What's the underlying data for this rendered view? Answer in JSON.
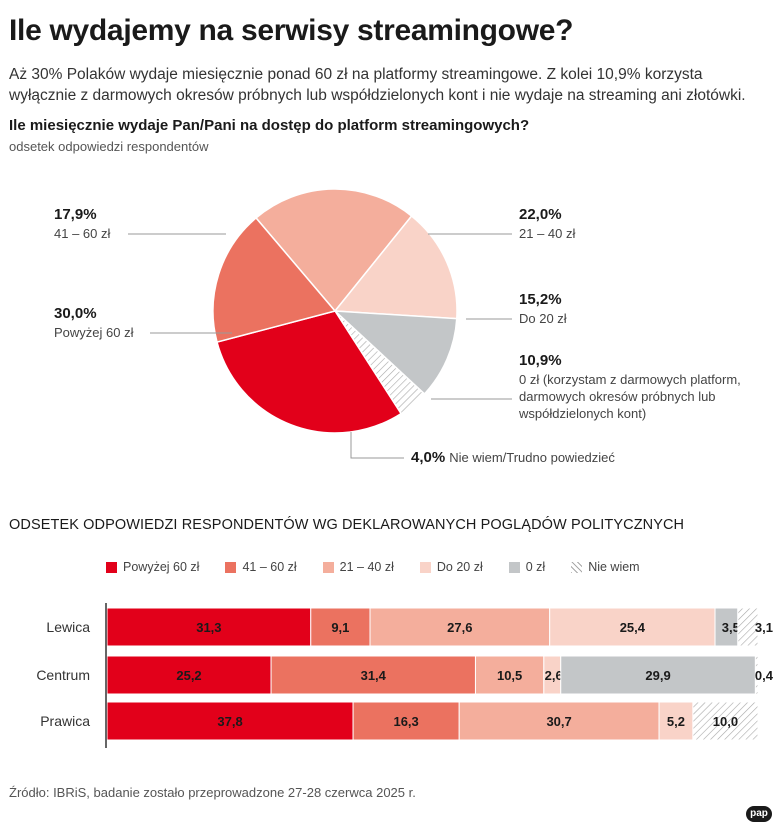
{
  "header": {
    "title": "Ile wydajemy na serwisy streamingowe?",
    "intro": "Aż 30% Polaków wydaje miesięcznie ponad 60 zł na platformy streamingowe. Z kolei 10,9% korzysta wyłącznie z darmowych okresów próbnych lub współdzielonych kont i nie wydaje na streaming ani złotówki.",
    "question": "Ile miesięcznie wydaje Pan/Pani na dostęp do platform streamingowych?",
    "note": "odsetek odpowiedzi respondentów"
  },
  "pie_labels": {
    "above60": {
      "pct": "30,0%",
      "cat": "Powyżej 60 zł"
    },
    "r41_60": {
      "pct": "17,9%",
      "cat": "41 – 60 zł"
    },
    "r21_40": {
      "pct": "22,0%",
      "cat": "21 – 40 zł"
    },
    "upto20": {
      "pct": "15,2%",
      "cat": "Do 20 zł"
    },
    "zero": {
      "pct": "10,9%",
      "cat": "0 zł (korzystam z darmowych platform, darmowych okresów próbnych lub współdzielonych kont)"
    },
    "dontknow": {
      "pct": "4,0%",
      "cat": "Nie wiem/Trudno powiedzieć"
    }
  },
  "bars_section": {
    "title": "ODSETEK ODPOWIEDZI RESPONDENTÓW WG DEKLAROWANYCH POGLĄDÓW POLITYCZNYCH"
  },
  "legend": [
    {
      "label": "Powyżej 60 zł",
      "color": "#e2001a"
    },
    {
      "label": "41 – 60 zł",
      "color": "#eb7260"
    },
    {
      "label": "21 – 40 zł",
      "color": "#f4ae9c"
    },
    {
      "label": "Do 20 zł",
      "color": "#f9d3c8"
    },
    {
      "label": "0 zł",
      "color": "#c3c6c8"
    },
    {
      "label": "Nie wiem",
      "color": "hatch"
    }
  ],
  "footer": {
    "source": "Źródło: IBRiS, badanie zostało przeprowadzone 27-28 czerwca 2025 r.",
    "logo": "pap"
  },
  "chart_data": [
    {
      "type": "pie",
      "title": "Ile miesięcznie wydaje Pan/Pani na dostęp do platform streamingowych?",
      "categories": [
        "Powyżej 60 zł",
        "41 – 60 zł",
        "21 – 40 zł",
        "Do 20 zł",
        "0 zł",
        "Nie wiem/Trudno powiedzieć"
      ],
      "values": [
        30.0,
        17.9,
        22.0,
        15.2,
        10.9,
        4.0
      ],
      "colors": [
        "#e2001a",
        "#eb7260",
        "#f4ae9c",
        "#f9d3c8",
        "#c3c6c8",
        "hatch"
      ]
    },
    {
      "type": "bar",
      "orientation": "horizontal",
      "stacked": true,
      "title": "ODSETEK ODPOWIEDZI RESPONDENTÓW WG DEKLAROWANYCH POGLĄDÓW POLITYCZNYCH",
      "categories": [
        "Lewica",
        "Centrum",
        "Prawica"
      ],
      "series": [
        {
          "name": "Powyżej 60 zł",
          "values": [
            31.3,
            25.2,
            37.8
          ],
          "labels": [
            "31,3",
            "25,2",
            "37,8"
          ]
        },
        {
          "name": "41 – 60 zł",
          "values": [
            9.1,
            31.4,
            16.3
          ],
          "labels": [
            "9,1",
            "31,4",
            "16,3"
          ]
        },
        {
          "name": "21 – 40 zł",
          "values": [
            27.6,
            10.5,
            30.7
          ],
          "labels": [
            "27,6",
            "10,5",
            "30,7"
          ]
        },
        {
          "name": "Do 20 zł",
          "values": [
            25.4,
            2.6,
            5.2
          ],
          "labels": [
            "25,4",
            "2,6",
            "5,2"
          ]
        },
        {
          "name": "0 zł",
          "values": [
            3.5,
            29.9,
            0
          ],
          "labels": [
            "3,5",
            "29,9",
            ""
          ]
        },
        {
          "name": "Nie wiem",
          "values": [
            3.1,
            0.4,
            10.0
          ],
          "labels": [
            "3,1",
            "0,4",
            "10,0"
          ]
        }
      ],
      "xlim": [
        0,
        100
      ]
    }
  ]
}
